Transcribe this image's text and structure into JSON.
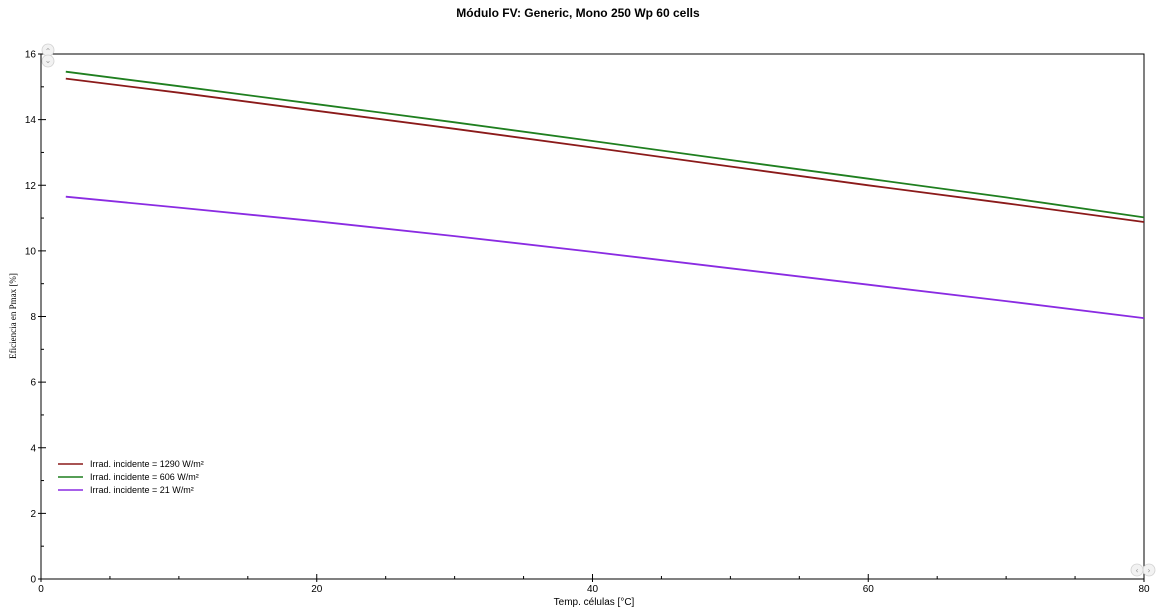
{
  "chart_data": {
    "type": "line",
    "title": "Módulo FV:  Generic, Mono 250 Wp  60 cells",
    "xlabel": "Temp. células [°C]",
    "ylabel": "Eficiencia en Pmax [%]",
    "xlim": [
      0,
      80
    ],
    "ylim": [
      0,
      16
    ],
    "xticks": [
      0,
      20,
      40,
      60,
      80
    ],
    "yticks": [
      0,
      2,
      4,
      6,
      8,
      10,
      12,
      14,
      16
    ],
    "grid": false,
    "legend_position": "bottom-left",
    "series": [
      {
        "name": "Irrad. incidente = 1290 W/m²",
        "color": "#8b1a1a",
        "x": [
          1.8,
          10,
          20,
          30,
          40,
          50,
          60,
          70,
          80
        ],
        "y": [
          15.25,
          14.82,
          14.27,
          13.72,
          13.15,
          12.57,
          12.0,
          11.45,
          10.88
        ]
      },
      {
        "name": "Irrad. incidente = 606 W/m²",
        "color": "#1f7f1f",
        "x": [
          1.8,
          10,
          20,
          30,
          40,
          50,
          60,
          70,
          80
        ],
        "y": [
          15.46,
          15.02,
          14.47,
          13.92,
          13.35,
          12.77,
          12.2,
          11.63,
          11.02
        ]
      },
      {
        "name": "Irrad. incidente = 21 W/m²",
        "color": "#8a2be2",
        "x": [
          1.8,
          10,
          20,
          30,
          40,
          50,
          60,
          70,
          80
        ],
        "y": [
          11.65,
          11.32,
          10.9,
          10.45,
          9.97,
          9.47,
          8.97,
          8.47,
          7.95
        ]
      }
    ]
  },
  "scroll": {
    "up": "⌃",
    "down": "⌄",
    "left": "‹",
    "right": "›"
  }
}
